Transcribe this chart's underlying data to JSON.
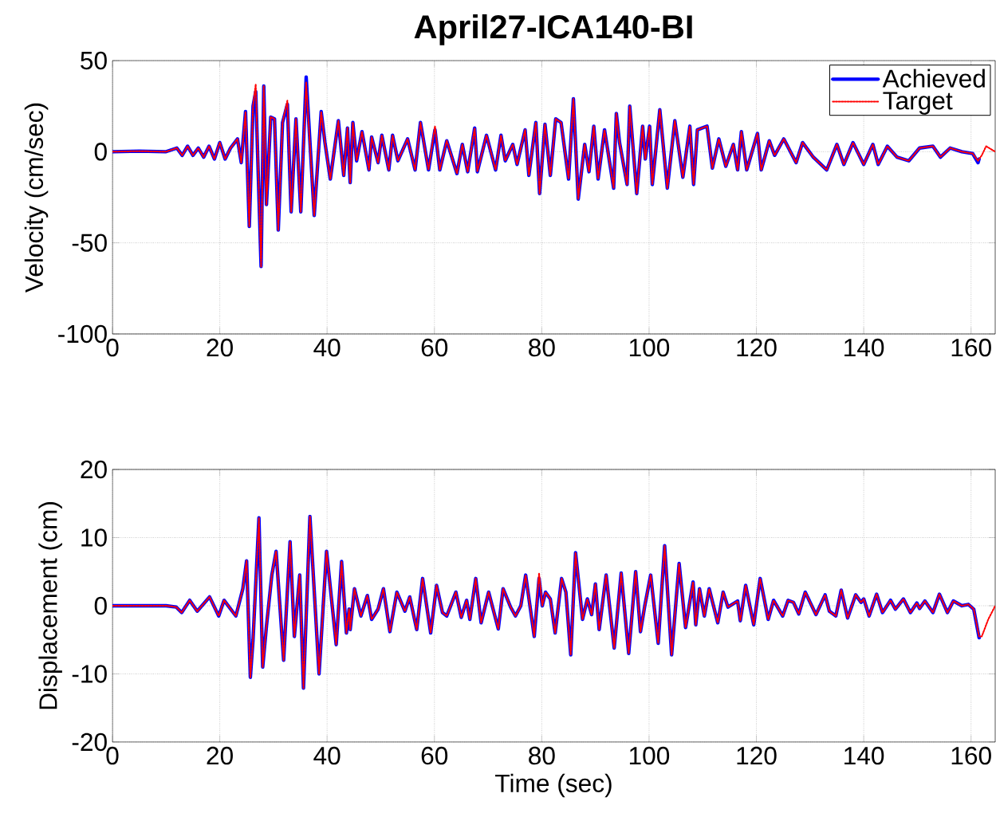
{
  "chart_data": [
    {
      "type": "line",
      "title": "April27-ICA140-BI",
      "ylabel": "Velocity (cm/sec)",
      "xlim": [
        0,
        164.5
      ],
      "xticks": [
        0,
        20,
        40,
        60,
        80,
        100,
        120,
        140,
        160
      ],
      "ylim": [
        -100,
        50
      ],
      "yticks": [
        -100,
        -50,
        0,
        50
      ],
      "grid": true,
      "legend": "top right",
      "marker": "none",
      "x": [
        0,
        5,
        10,
        12,
        13,
        14,
        15,
        16,
        17,
        18,
        19,
        20,
        21,
        22,
        23.3,
        24,
        24.8,
        25.5,
        26.2,
        26.7,
        27.7,
        28.2,
        28.7,
        29.5,
        30.2,
        30.9,
        31.7,
        32.6,
        33.3,
        34.2,
        35.1,
        36.1,
        37.6,
        38.9,
        39.6,
        40.6,
        42.1,
        43.1,
        43.8,
        44.3,
        44.8,
        45.5,
        46.5,
        47.8,
        48.3,
        49.5,
        50.2,
        51.5,
        52.2,
        53.2,
        55,
        56.4,
        57.4,
        58.9,
        60.1,
        61,
        62.3,
        64.2,
        65.2,
        66.2,
        67.5,
        68,
        69.7,
        71.4,
        72.4,
        73.2,
        74.6,
        75.4,
        76.9,
        77.6,
        78.9,
        79.6,
        80.6,
        81.6,
        82.6,
        83.6,
        85,
        85.9,
        86.8,
        88,
        88.8,
        89.7,
        90.5,
        91.7,
        93.4,
        93.9,
        94.5,
        95.9,
        96.4,
        97.7,
        98.8,
        99.3,
        100.1,
        100.6,
        102,
        103.4,
        104.8,
        106.3,
        107.6,
        108.3,
        109,
        110.8,
        111.8,
        113,
        114.3,
        115.7,
        116.5,
        117.2,
        118.2,
        120.2,
        120.9,
        122.4,
        123.4,
        125.1,
        127.4,
        128.6,
        130.6,
        133.1,
        135,
        136.3,
        138,
        140,
        141.7,
        142.7,
        144.4,
        146.2,
        148.4,
        150.4,
        152.9,
        154.3,
        156.1,
        158.3,
        160.3,
        161.3,
        161.5,
        162,
        162.8,
        164.5
      ],
      "series": [
        {
          "name": "Achieved",
          "color": "#0000ff",
          "line_style": "solid",
          "values": [
            0,
            0.3,
            0,
            2,
            -2,
            3,
            -2,
            2,
            -3,
            3,
            -4,
            5,
            -4,
            2,
            7,
            -6,
            22,
            -41,
            25,
            33,
            -63,
            36,
            -29,
            19,
            18,
            -43,
            16,
            26,
            -33,
            18,
            -33,
            41,
            -35,
            22,
            5,
            -15,
            17,
            -13,
            13,
            -17,
            16,
            -5,
            11,
            -10,
            8,
            -6,
            9,
            -10,
            9,
            -5,
            7,
            -10,
            16,
            -10,
            12,
            -10,
            6,
            -12,
            4,
            -11,
            13,
            -11,
            9,
            -10,
            9,
            -5,
            4,
            -7,
            12,
            -13,
            16,
            -23,
            15,
            -13,
            18,
            16,
            -15,
            29,
            -26,
            4,
            -11,
            14,
            -15,
            12,
            -20,
            21,
            5,
            -18,
            25,
            -23,
            14,
            -4,
            14,
            -18,
            23,
            -20,
            17,
            -14,
            14,
            -18,
            12,
            14,
            -9,
            7,
            -8,
            4,
            -10,
            11,
            -10,
            10,
            -10,
            6,
            -2,
            7,
            -6,
            5,
            -3,
            -10,
            4,
            -7,
            5,
            -7,
            4,
            -7,
            3,
            -3,
            -5,
            2,
            3,
            -3,
            2,
            0,
            -1,
            -6,
            -4,
            null,
            null,
            null
          ]
        },
        {
          "name": "Target",
          "color": "#ff0000",
          "line_style": "dotted",
          "values": [
            0,
            0.3,
            0,
            2,
            -2,
            3,
            -2,
            2,
            -3,
            3,
            -4,
            5,
            -4,
            2,
            7,
            -6,
            22,
            -41,
            25,
            37,
            -63,
            36,
            -29,
            19,
            18,
            -43,
            16,
            28,
            -33,
            18,
            -33,
            38,
            -35,
            22,
            5,
            -15,
            17,
            -13,
            13,
            -17,
            16,
            -5,
            11,
            -10,
            8,
            -6,
            9,
            -10,
            9,
            -5,
            7,
            -10,
            16,
            -10,
            14,
            -10,
            6,
            -12,
            4,
            -11,
            13,
            -11,
            9,
            -10,
            9,
            -5,
            4,
            -7,
            12,
            -13,
            16,
            -23,
            15,
            -13,
            18,
            16,
            -15,
            29,
            -26,
            4,
            -11,
            14,
            -15,
            12,
            -20,
            21,
            5,
            -18,
            25,
            -23,
            14,
            -4,
            14,
            -18,
            23,
            -20,
            17,
            -14,
            14,
            -18,
            12,
            14,
            -9,
            7,
            -8,
            4,
            -10,
            11,
            -10,
            10,
            -10,
            6,
            -2,
            7,
            -6,
            5,
            -3,
            -10,
            4,
            -7,
            5,
            -7,
            4,
            -7,
            3,
            -3,
            -5,
            2,
            3,
            -3,
            2,
            0,
            -1,
            -5,
            -4,
            -2,
            3,
            0
          ]
        }
      ]
    },
    {
      "type": "line",
      "xlabel": "Time (sec)",
      "ylabel": "Displacement (cm)",
      "xlim": [
        0,
        164.5
      ],
      "xticks": [
        0,
        20,
        40,
        60,
        80,
        100,
        120,
        140,
        160
      ],
      "ylim": [
        -20,
        20
      ],
      "yticks": [
        -20,
        -10,
        0,
        10,
        20
      ],
      "grid": true,
      "marker": "none",
      "x": [
        0,
        5,
        10,
        11.9,
        12.9,
        14.4,
        15.8,
        18.1,
        19.8,
        20.8,
        23,
        24.3,
        25,
        25.7,
        26.2,
        27.3,
        28,
        28.7,
        29.7,
        30.5,
        31.9,
        33.1,
        33.9,
        34.9,
        35.6,
        36.8,
        38.5,
        39.9,
        41.7,
        42.7,
        43.6,
        44.1,
        44.3,
        45.1,
        46.3,
        47.5,
        48.3,
        49.5,
        50.5,
        51.7,
        53,
        54.5,
        55.4,
        56.7,
        57.8,
        59.3,
        60.4,
        61.5,
        62.3,
        64,
        65,
        66,
        66.6,
        67.7,
        68.7,
        70.1,
        71.9,
        72.8,
        74.2,
        75.1,
        76.1,
        77,
        78.6,
        79.5,
        80.1,
        80.7,
        81.6,
        82.5,
        83.7,
        84.5,
        85.4,
        86.3,
        87.6,
        88.5,
        89.3,
        90,
        90.7,
        92,
        93.5,
        94.8,
        96.2,
        97.5,
        98.4,
        99.2,
        100.3,
        101.7,
        102.9,
        104.2,
        105.6,
        106.8,
        108.2,
        108.7,
        109.4,
        110.3,
        111.2,
        112.8,
        113.8,
        114.7,
        116.5,
        117,
        118,
        119.5,
        120.7,
        122.2,
        123.2,
        124.9,
        125.9,
        126.9,
        127.9,
        129.1,
        131.1,
        132.8,
        133.6,
        134.8,
        135.8,
        137,
        138.5,
        139.5,
        140,
        141,
        142.4,
        143.5,
        145,
        145.9,
        147.4,
        148.7,
        149.9,
        150.4,
        151.4,
        152.9,
        154.1,
        155.6,
        156.7,
        158.3,
        159.5,
        160.5,
        161.5,
        162,
        163.2,
        164.5
      ],
      "series": [
        {
          "color": "#0000ff",
          "line_style": "solid",
          "values": [
            0,
            0,
            0,
            -0.2,
            -1,
            0.8,
            -0.8,
            1.3,
            -1.5,
            0.8,
            -1.5,
            2.5,
            6.6,
            -10.5,
            -5,
            12.9,
            -9,
            -3,
            4.5,
            8,
            -8,
            9.4,
            -4.5,
            4.5,
            -12.1,
            13.1,
            -10,
            8,
            -5.7,
            6.5,
            -4,
            -0.5,
            -3.5,
            2.5,
            -1.5,
            1.5,
            -2,
            -0.5,
            2.5,
            -3.8,
            2,
            -0.8,
            1.3,
            -3.5,
            4,
            -4,
            3,
            -1,
            -1.5,
            2,
            -1.7,
            0.8,
            -2,
            4,
            -2.5,
            2,
            -3.4,
            2.5,
            -0.2,
            -1.5,
            0,
            4.5,
            -4.5,
            4,
            0,
            2,
            1,
            -4,
            4,
            2,
            -7.2,
            7.8,
            -2,
            1,
            -1.3,
            3.2,
            -3.5,
            4.5,
            -6.2,
            4.8,
            -7,
            5,
            -3.8,
            0,
            4.5,
            -5.5,
            8.8,
            -7.2,
            6.2,
            -3.2,
            3.5,
            -2.8,
            2.5,
            -1.5,
            2.5,
            -2.5,
            2,
            -0.2,
            0.7,
            -2.2,
            3,
            -2.8,
            4,
            -2,
            0.8,
            -1.5,
            0.8,
            0.5,
            -1.2,
            2,
            -1.3,
            1.6,
            -0.8,
            -1.5,
            2.3,
            -1.8,
            1.6,
            0.5,
            1,
            -1.5,
            1.7,
            -1,
            0.8,
            -0.5,
            1,
            -1,
            0.4,
            -0.4,
            0.7,
            -1,
            1.7,
            -1,
            0.7,
            0,
            0.2,
            -0.5,
            -4.7,
            null,
            null,
            null
          ]
        },
        {
          "color": "#ff0000",
          "line_style": "dotted",
          "values": [
            0,
            0,
            0,
            -0.2,
            -1,
            0.8,
            -0.8,
            1.3,
            -1.5,
            0.8,
            -1.5,
            2.5,
            6.6,
            -10.5,
            -5,
            12.9,
            -9,
            -3,
            4.5,
            8,
            -8,
            9.4,
            -4.5,
            4.5,
            -12.1,
            13.1,
            -10,
            8,
            -5.7,
            6.5,
            -4,
            -0.5,
            -3.5,
            2.5,
            -1.5,
            1.5,
            -2,
            -0.5,
            2.5,
            -3.8,
            2,
            -0.8,
            1.3,
            -3.5,
            4,
            -4,
            3,
            -1,
            -1.5,
            2,
            -1.7,
            0.8,
            -2,
            4,
            -2.5,
            2,
            -3.4,
            2.5,
            -0.2,
            -1.5,
            0,
            4.5,
            -4.5,
            4.8,
            0,
            2,
            1,
            -4,
            4,
            2,
            -7.2,
            7.8,
            -2,
            1,
            -1.3,
            3.2,
            -3.5,
            4.5,
            -6.2,
            4.8,
            -7,
            5,
            -3.8,
            0,
            4.5,
            -5.5,
            8.8,
            -7.2,
            6.2,
            -3.2,
            3.5,
            -2.8,
            2.5,
            -1.5,
            2.5,
            -2.5,
            2,
            -0.2,
            0.7,
            -2.2,
            3,
            -2.8,
            4,
            -2,
            0.8,
            -1.5,
            0.8,
            0.5,
            -1.2,
            2,
            -1.3,
            1.6,
            -0.8,
            -1.5,
            2.3,
            -1.8,
            1.6,
            0.5,
            1,
            -1.5,
            1.7,
            -1,
            0.8,
            -0.5,
            1,
            -1,
            0.4,
            -0.4,
            0.7,
            -1,
            1.7,
            -1,
            0.7,
            0,
            0.2,
            -0.5,
            -4.5,
            -4.5,
            -2,
            0
          ]
        }
      ]
    }
  ]
}
